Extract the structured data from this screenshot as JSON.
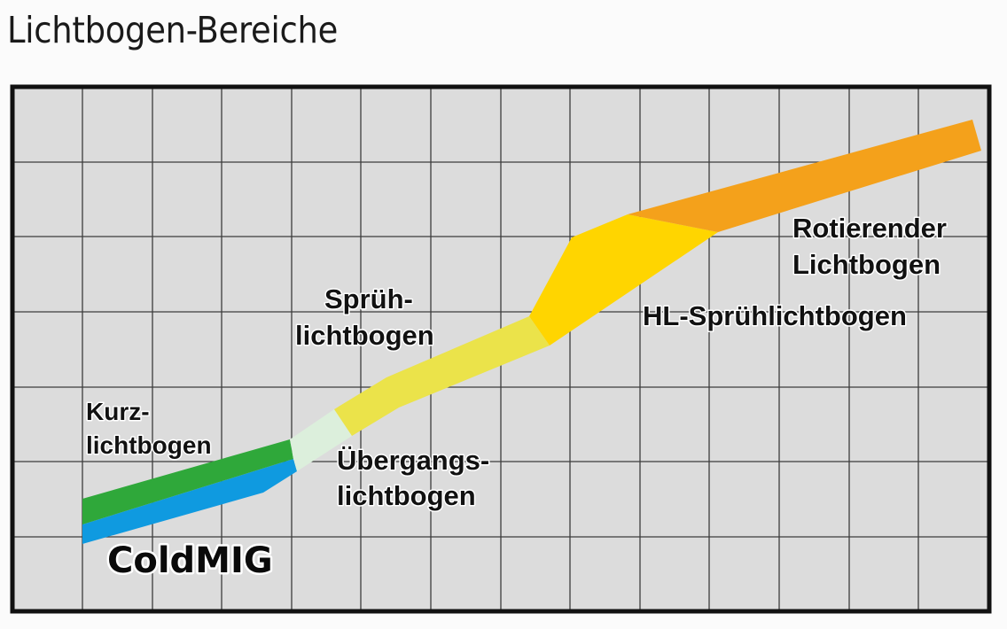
{
  "title": "Lichtbogen-Bereiche",
  "colors": {
    "grid_background": "#dcdcdc",
    "grid_line": "#3c3c3c",
    "frame": "#111111",
    "coldmig": "#0f9ae0",
    "kurzlichtbogen": "#2fa83a",
    "uebergangslichtbogen": "#dcefdc",
    "spruehlichtbogen": "#ebe34a",
    "hl_spruehlichtbogen": "#ffd500",
    "rotierender_lichtbogen": "#f4a11b"
  },
  "regions": {
    "kurzlichtbogen": {
      "lines": [
        "Kurz-",
        "lichtbogen"
      ]
    },
    "coldmig": {
      "lines": [
        "ColdMIG"
      ]
    },
    "uebergangslichtbogen": {
      "lines": [
        "Übergangs-",
        "lichtbogen"
      ]
    },
    "spruehlichtbogen": {
      "lines": [
        "Sprüh-",
        "lichtbogen"
      ]
    },
    "hl_spruehlichtbogen": {
      "lines": [
        "HL-Sprühlichtbogen"
      ]
    },
    "rotierender_lichtbogen": {
      "lines": [
        "Rotierender",
        "Lichtbogen"
      ]
    }
  }
}
